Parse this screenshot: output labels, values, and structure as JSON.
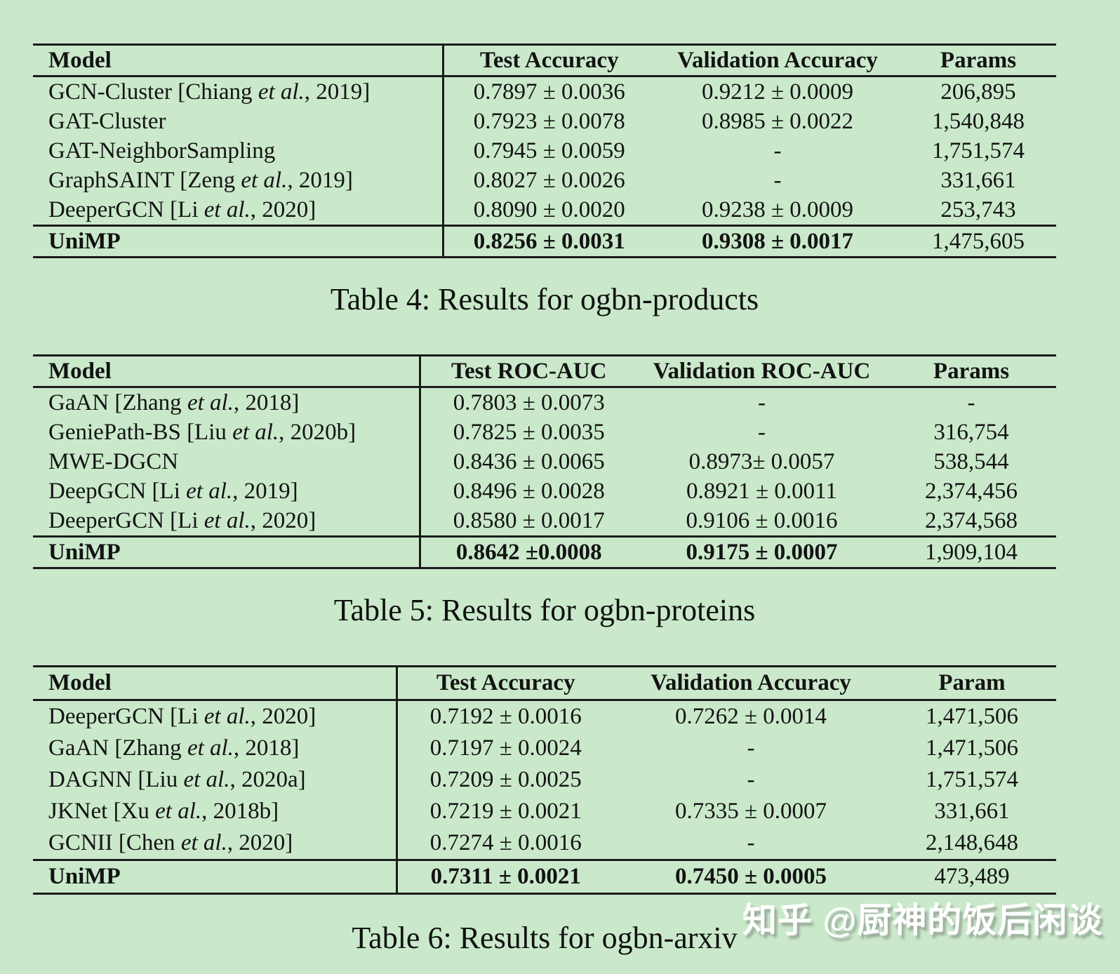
{
  "colors": {
    "background": "#cae9cb",
    "text": "#131313",
    "rule": "#1b1b1b",
    "watermark_text": "#ffffff"
  },
  "tables": [
    {
      "caption": "Table 4: Results for ogbn-products",
      "columns": [
        "Model",
        "Test Accuracy",
        "Validation Accuracy",
        "Params"
      ],
      "rows": [
        {
          "model": "GCN-Cluster [Chiang et al., 2019]",
          "test": "0.7897 ± 0.0036",
          "validation": "0.9212 ± 0.0009",
          "params": "206,895",
          "highlight": false
        },
        {
          "model": "GAT-Cluster",
          "test": "0.7923 ± 0.0078",
          "validation": "0.8985 ± 0.0022",
          "params": "1,540,848",
          "highlight": false
        },
        {
          "model": "GAT-NeighborSampling",
          "test": "0.7945 ± 0.0059",
          "validation": "-",
          "params": "1,751,574",
          "highlight": false
        },
        {
          "model": "GraphSAINT [Zeng et al., 2019]",
          "test": "0.8027 ± 0.0026",
          "validation": "-",
          "params": "331,661",
          "highlight": false
        },
        {
          "model": "DeeperGCN [Li et al., 2020]",
          "test": "0.8090 ± 0.0020",
          "validation": "0.9238 ± 0.0009",
          "params": "253,743",
          "highlight": false
        },
        {
          "model": "UniMP",
          "test": "0.8256 ± 0.0031",
          "validation": "0.9308 ± 0.0017",
          "params": "1,475,605",
          "highlight": true
        }
      ]
    },
    {
      "caption": "Table 5: Results for ogbn-proteins",
      "columns": [
        "Model",
        "Test ROC-AUC",
        "Validation ROC-AUC",
        "Params"
      ],
      "rows": [
        {
          "model": "GaAN [Zhang et al., 2018]",
          "test": "0.7803 ± 0.0073",
          "validation": "-",
          "params": "-",
          "highlight": false
        },
        {
          "model": "GeniePath-BS [Liu et al., 2020b]",
          "test": "0.7825 ± 0.0035",
          "validation": "-",
          "params": "316,754",
          "highlight": false
        },
        {
          "model": "MWE-DGCN",
          "test": "0.8436 ± 0.0065",
          "validation": "0.8973± 0.0057",
          "params": "538,544",
          "highlight": false
        },
        {
          "model": "DeepGCN [Li et al., 2019]",
          "test": "0.8496 ± 0.0028",
          "validation": "0.8921 ± 0.0011",
          "params": "2,374,456",
          "highlight": false
        },
        {
          "model": "DeeperGCN [Li et al., 2020]",
          "test": "0.8580 ± 0.0017",
          "validation": "0.9106 ± 0.0016",
          "params": "2,374,568",
          "highlight": false
        },
        {
          "model": "UniMP",
          "test": "0.8642 ±0.0008",
          "validation": "0.9175 ± 0.0007",
          "params": "1,909,104",
          "highlight": true
        }
      ]
    },
    {
      "caption": "Table 6: Results for ogbn-arxiv",
      "columns": [
        "Model",
        "Test Accuracy",
        "Validation Accuracy",
        "Param"
      ],
      "rows": [
        {
          "model": "DeeperGCN [Li et al., 2020]",
          "test": "0.7192 ± 0.0016",
          "validation": "0.7262 ± 0.0014",
          "params": "1,471,506",
          "highlight": false
        },
        {
          "model": "GaAN [Zhang et al., 2018]",
          "test": "0.7197 ± 0.0024",
          "validation": "-",
          "params": "1,471,506",
          "highlight": false
        },
        {
          "model": "DAGNN [Liu et al., 2020a]",
          "test": "0.7209 ± 0.0025",
          "validation": "-",
          "params": "1,751,574",
          "highlight": false
        },
        {
          "model": "JKNet [Xu et al., 2018b]",
          "test": "0.7219 ± 0.0021",
          "validation": "0.7335 ± 0.0007",
          "params": "331,661",
          "highlight": false
        },
        {
          "model": "GCNII [Chen et al., 2020]",
          "test": "0.7274 ± 0.0016",
          "validation": "-",
          "params": "2,148,648",
          "highlight": false
        },
        {
          "model": "UniMP",
          "test": "0.7311 ± 0.0021",
          "validation": "0.7450 ± 0.0005",
          "params": "473,489",
          "highlight": true
        }
      ]
    }
  ],
  "watermark": {
    "text": "知乎 @厨神的饭后闲谈"
  }
}
